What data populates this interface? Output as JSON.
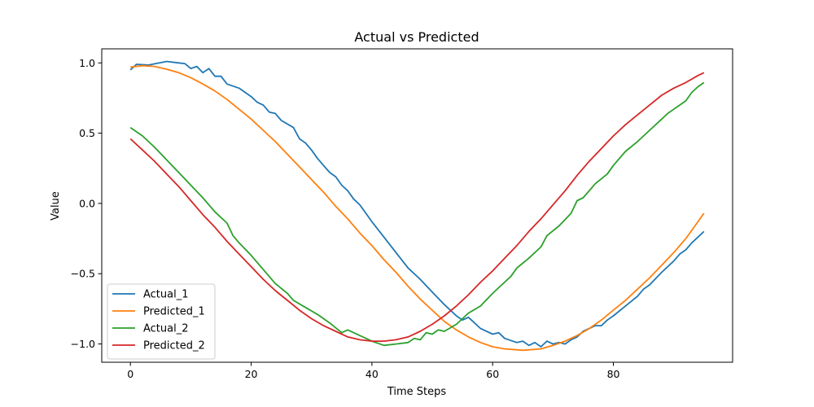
{
  "chart_data": {
    "type": "line",
    "title": "Actual vs Predicted",
    "xlabel": "Time Steps",
    "ylabel": "Value",
    "xlim": [
      -4.75,
      99.75
    ],
    "ylim": [
      -1.13,
      1.1
    ],
    "xticks": [
      0,
      20,
      40,
      60,
      80
    ],
    "yticks": [
      -1.0,
      -0.5,
      0.0,
      0.5,
      1.0
    ],
    "xtick_labels": [
      "0",
      "20",
      "40",
      "60",
      "80"
    ],
    "ytick_labels": [
      "−1.0",
      "−0.5",
      "0.0",
      "0.5",
      "1.0"
    ],
    "grid": false,
    "legend_position": "lower-left",
    "series": [
      {
        "name": "Actual_1",
        "color": "#1f77b4",
        "points": [
          [
            0,
            0.95
          ],
          [
            1,
            0.99
          ],
          [
            3,
            0.985
          ],
          [
            6,
            1.01
          ],
          [
            8,
            1.0
          ],
          [
            9,
            0.995
          ],
          [
            10,
            0.96
          ],
          [
            11,
            0.975
          ],
          [
            12,
            0.93
          ],
          [
            13,
            0.96
          ],
          [
            14,
            0.905
          ],
          [
            15,
            0.905
          ],
          [
            16,
            0.85
          ],
          [
            18,
            0.82
          ],
          [
            20,
            0.76
          ],
          [
            21,
            0.72
          ],
          [
            22,
            0.7
          ],
          [
            23,
            0.65
          ],
          [
            24,
            0.64
          ],
          [
            25,
            0.59
          ],
          [
            27,
            0.54
          ],
          [
            28,
            0.46
          ],
          [
            29,
            0.43
          ],
          [
            30,
            0.38
          ],
          [
            31,
            0.32
          ],
          [
            32,
            0.27
          ],
          [
            33,
            0.22
          ],
          [
            34,
            0.19
          ],
          [
            35,
            0.13
          ],
          [
            36,
            0.09
          ],
          [
            37,
            0.03
          ],
          [
            38,
            -0.01
          ],
          [
            39,
            -0.07
          ],
          [
            40,
            -0.13
          ],
          [
            42,
            -0.24
          ],
          [
            44,
            -0.35
          ],
          [
            46,
            -0.46
          ],
          [
            48,
            -0.54
          ],
          [
            50,
            -0.63
          ],
          [
            52,
            -0.72
          ],
          [
            54,
            -0.8
          ],
          [
            55,
            -0.83
          ],
          [
            56,
            -0.81
          ],
          [
            58,
            -0.89
          ],
          [
            60,
            -0.93
          ],
          [
            61,
            -0.92
          ],
          [
            62,
            -0.96
          ],
          [
            64,
            -0.99
          ],
          [
            65,
            -0.98
          ],
          [
            66,
            -1.01
          ],
          [
            67,
            -0.99
          ],
          [
            68,
            -1.02
          ],
          [
            69,
            -0.98
          ],
          [
            70,
            -1.0
          ],
          [
            71,
            -0.99
          ],
          [
            72,
            -1.0
          ],
          [
            73,
            -0.97
          ],
          [
            74,
            -0.95
          ],
          [
            75,
            -0.91
          ],
          [
            77,
            -0.87
          ],
          [
            78,
            -0.87
          ],
          [
            79,
            -0.83
          ],
          [
            80,
            -0.8
          ],
          [
            82,
            -0.73
          ],
          [
            84,
            -0.66
          ],
          [
            85,
            -0.61
          ],
          [
            86,
            -0.58
          ],
          [
            88,
            -0.49
          ],
          [
            90,
            -0.41
          ],
          [
            91,
            -0.36
          ],
          [
            92,
            -0.33
          ],
          [
            93,
            -0.28
          ],
          [
            94,
            -0.24
          ],
          [
            95,
            -0.2
          ]
        ]
      },
      {
        "name": "Predicted_1",
        "color": "#ff7f0e",
        "points": [
          [
            0,
            0.97
          ],
          [
            2,
            0.98
          ],
          [
            4,
            0.975
          ],
          [
            6,
            0.955
          ],
          [
            8,
            0.93
          ],
          [
            10,
            0.895
          ],
          [
            12,
            0.85
          ],
          [
            14,
            0.8
          ],
          [
            16,
            0.74
          ],
          [
            18,
            0.67
          ],
          [
            20,
            0.6
          ],
          [
            22,
            0.52
          ],
          [
            24,
            0.44
          ],
          [
            26,
            0.35
          ],
          [
            28,
            0.26
          ],
          [
            30,
            0.17
          ],
          [
            32,
            0.08
          ],
          [
            34,
            -0.02
          ],
          [
            36,
            -0.11
          ],
          [
            38,
            -0.21
          ],
          [
            40,
            -0.3
          ],
          [
            42,
            -0.4
          ],
          [
            44,
            -0.49
          ],
          [
            46,
            -0.59
          ],
          [
            48,
            -0.68
          ],
          [
            50,
            -0.76
          ],
          [
            52,
            -0.84
          ],
          [
            54,
            -0.9
          ],
          [
            56,
            -0.95
          ],
          [
            58,
            -0.99
          ],
          [
            60,
            -1.02
          ],
          [
            62,
            -1.035
          ],
          [
            65,
            -1.045
          ],
          [
            68,
            -1.035
          ],
          [
            70,
            -1.01
          ],
          [
            72,
            -0.98
          ],
          [
            74,
            -0.94
          ],
          [
            76,
            -0.89
          ],
          [
            78,
            -0.83
          ],
          [
            80,
            -0.76
          ],
          [
            82,
            -0.69
          ],
          [
            84,
            -0.61
          ],
          [
            86,
            -0.53
          ],
          [
            88,
            -0.44
          ],
          [
            90,
            -0.35
          ],
          [
            92,
            -0.25
          ],
          [
            94,
            -0.13
          ],
          [
            95,
            -0.07
          ]
        ]
      },
      {
        "name": "Actual_2",
        "color": "#2ca02c",
        "points": [
          [
            0,
            0.54
          ],
          [
            2,
            0.48
          ],
          [
            4,
            0.4
          ],
          [
            6,
            0.31
          ],
          [
            8,
            0.22
          ],
          [
            10,
            0.13
          ],
          [
            12,
            0.04
          ],
          [
            14,
            -0.06
          ],
          [
            16,
            -0.14
          ],
          [
            17,
            -0.23
          ],
          [
            18,
            -0.28
          ],
          [
            20,
            -0.37
          ],
          [
            22,
            -0.47
          ],
          [
            24,
            -0.57
          ],
          [
            26,
            -0.64
          ],
          [
            27,
            -0.69
          ],
          [
            29,
            -0.74
          ],
          [
            31,
            -0.79
          ],
          [
            33,
            -0.85
          ],
          [
            35,
            -0.92
          ],
          [
            36,
            -0.9
          ],
          [
            38,
            -0.94
          ],
          [
            40,
            -0.98
          ],
          [
            42,
            -1.01
          ],
          [
            44,
            -1.0
          ],
          [
            46,
            -0.99
          ],
          [
            47,
            -0.96
          ],
          [
            48,
            -0.97
          ],
          [
            49,
            -0.92
          ],
          [
            50,
            -0.93
          ],
          [
            51,
            -0.9
          ],
          [
            52,
            -0.91
          ],
          [
            54,
            -0.86
          ],
          [
            56,
            -0.78
          ],
          [
            58,
            -0.73
          ],
          [
            60,
            -0.64
          ],
          [
            62,
            -0.56
          ],
          [
            63,
            -0.52
          ],
          [
            64,
            -0.46
          ],
          [
            66,
            -0.39
          ],
          [
            68,
            -0.31
          ],
          [
            69,
            -0.23
          ],
          [
            71,
            -0.16
          ],
          [
            73,
            -0.07
          ],
          [
            74,
            0.02
          ],
          [
            75,
            0.04
          ],
          [
            77,
            0.14
          ],
          [
            79,
            0.21
          ],
          [
            80,
            0.27
          ],
          [
            82,
            0.37
          ],
          [
            84,
            0.44
          ],
          [
            86,
            0.52
          ],
          [
            88,
            0.6
          ],
          [
            89,
            0.64
          ],
          [
            90,
            0.67
          ],
          [
            92,
            0.73
          ],
          [
            93,
            0.79
          ],
          [
            94,
            0.83
          ],
          [
            95,
            0.86
          ]
        ]
      },
      {
        "name": "Predicted_2",
        "color": "#d62728",
        "points": [
          [
            0,
            0.46
          ],
          [
            2,
            0.38
          ],
          [
            4,
            0.3
          ],
          [
            6,
            0.21
          ],
          [
            8,
            0.12
          ],
          [
            10,
            0.02
          ],
          [
            12,
            -0.08
          ],
          [
            14,
            -0.17
          ],
          [
            16,
            -0.27
          ],
          [
            18,
            -0.36
          ],
          [
            20,
            -0.45
          ],
          [
            22,
            -0.54
          ],
          [
            24,
            -0.62
          ],
          [
            26,
            -0.69
          ],
          [
            28,
            -0.76
          ],
          [
            30,
            -0.82
          ],
          [
            32,
            -0.87
          ],
          [
            34,
            -0.91
          ],
          [
            36,
            -0.95
          ],
          [
            38,
            -0.97
          ],
          [
            40,
            -0.98
          ],
          [
            42,
            -0.98
          ],
          [
            44,
            -0.97
          ],
          [
            46,
            -0.95
          ],
          [
            48,
            -0.91
          ],
          [
            50,
            -0.86
          ],
          [
            52,
            -0.8
          ],
          [
            54,
            -0.73
          ],
          [
            56,
            -0.65
          ],
          [
            58,
            -0.56
          ],
          [
            60,
            -0.48
          ],
          [
            62,
            -0.39
          ],
          [
            64,
            -0.3
          ],
          [
            66,
            -0.2
          ],
          [
            68,
            -0.11
          ],
          [
            70,
            -0.01
          ],
          [
            72,
            0.09
          ],
          [
            74,
            0.2
          ],
          [
            76,
            0.3
          ],
          [
            78,
            0.39
          ],
          [
            80,
            0.48
          ],
          [
            82,
            0.56
          ],
          [
            84,
            0.63
          ],
          [
            86,
            0.7
          ],
          [
            88,
            0.77
          ],
          [
            90,
            0.82
          ],
          [
            92,
            0.86
          ],
          [
            94,
            0.91
          ],
          [
            95,
            0.93
          ]
        ]
      }
    ]
  }
}
